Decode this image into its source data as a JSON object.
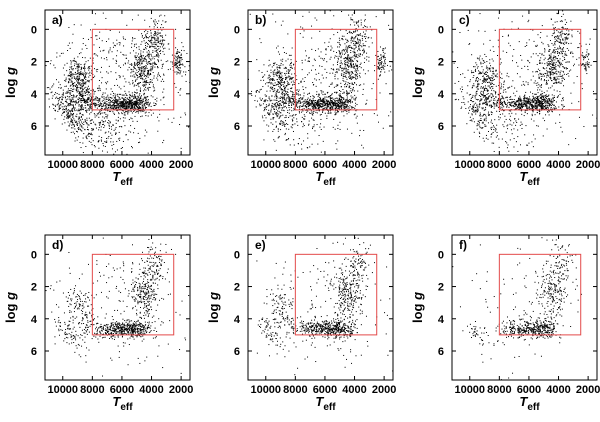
{
  "chart_data": {
    "type": "scatter",
    "grid": false,
    "panel_box_color": "#e34a4a",
    "point_color": "#000000",
    "axes": {
      "x": {
        "label_main": "T",
        "label_sub": "eff",
        "lim": [
          11200,
          1400
        ],
        "reversed": true,
        "ticks": [
          "10000",
          "8000",
          "6000",
          "4000",
          "2000"
        ],
        "tick_values": [
          10000,
          8000,
          6000,
          4000,
          2000
        ]
      },
      "y": {
        "label_italic": "g",
        "label_prefix": "log ",
        "lim": [
          -1.2,
          7.8
        ],
        "reversed": true,
        "ticks": [
          "0",
          "2",
          "4",
          "6"
        ],
        "tick_values": [
          0,
          2,
          4,
          6
        ]
      }
    },
    "selection_box": {
      "teff": [
        8000,
        2500
      ],
      "logg": [
        0,
        5
      ]
    },
    "panels": [
      {
        "label": "a)",
        "clusters": [
          {
            "teff": 9500,
            "logg": 5.2,
            "spread_t": 700,
            "spread_g": 0.5,
            "n": 240,
            "tilt": -0.0009
          },
          {
            "teff": 9000,
            "logg": 3.0,
            "spread_t": 500,
            "spread_g": 0.6,
            "n": 260
          },
          {
            "teff": 8500,
            "logg": 4.3,
            "spread_t": 700,
            "spread_g": 0.4,
            "n": 200
          },
          {
            "teff": 7200,
            "logg": 6.0,
            "spread_t": 900,
            "spread_g": 0.9,
            "n": 180
          },
          {
            "teff": 6200,
            "logg": 4.6,
            "spread_t": 800,
            "spread_g": 0.25,
            "n": 380
          },
          {
            "teff": 5000,
            "logg": 4.6,
            "spread_t": 500,
            "spread_g": 0.3,
            "n": 200
          },
          {
            "teff": 4500,
            "logg": 2.4,
            "spread_t": 500,
            "spread_g": 0.8,
            "n": 300
          },
          {
            "teff": 3800,
            "logg": 0.6,
            "spread_t": 400,
            "spread_g": 0.7,
            "n": 150
          },
          {
            "teff": 2200,
            "logg": 2.0,
            "spread_t": 200,
            "spread_g": 0.4,
            "n": 90
          },
          {
            "teff": 6000,
            "logg": 3.0,
            "spread_t": 2600,
            "spread_g": 2.2,
            "n": 420
          }
        ]
      },
      {
        "label": "b)",
        "clusters": [
          {
            "teff": 9500,
            "logg": 5.2,
            "spread_t": 700,
            "spread_g": 0.5,
            "n": 150,
            "tilt": -0.0009
          },
          {
            "teff": 9000,
            "logg": 3.0,
            "spread_t": 500,
            "spread_g": 0.6,
            "n": 230
          },
          {
            "teff": 8500,
            "logg": 4.3,
            "spread_t": 700,
            "spread_g": 0.4,
            "n": 190
          },
          {
            "teff": 7200,
            "logg": 5.8,
            "spread_t": 900,
            "spread_g": 0.8,
            "n": 80
          },
          {
            "teff": 6200,
            "logg": 4.6,
            "spread_t": 800,
            "spread_g": 0.25,
            "n": 360
          },
          {
            "teff": 5000,
            "logg": 4.6,
            "spread_t": 500,
            "spread_g": 0.3,
            "n": 190
          },
          {
            "teff": 4500,
            "logg": 2.4,
            "spread_t": 500,
            "spread_g": 0.8,
            "n": 280
          },
          {
            "teff": 3800,
            "logg": 0.6,
            "spread_t": 400,
            "spread_g": 0.7,
            "n": 140
          },
          {
            "teff": 2200,
            "logg": 2.0,
            "spread_t": 200,
            "spread_g": 0.4,
            "n": 70
          },
          {
            "teff": 6000,
            "logg": 3.0,
            "spread_t": 2600,
            "spread_g": 2.2,
            "n": 360
          }
        ]
      },
      {
        "label": "c)",
        "clusters": [
          {
            "teff": 9500,
            "logg": 5.2,
            "spread_t": 700,
            "spread_g": 0.5,
            "n": 130,
            "tilt": -0.0009
          },
          {
            "teff": 9000,
            "logg": 3.0,
            "spread_t": 500,
            "spread_g": 0.6,
            "n": 200
          },
          {
            "teff": 8500,
            "logg": 4.3,
            "spread_t": 700,
            "spread_g": 0.4,
            "n": 170
          },
          {
            "teff": 7200,
            "logg": 5.8,
            "spread_t": 900,
            "spread_g": 0.8,
            "n": 50
          },
          {
            "teff": 6200,
            "logg": 4.6,
            "spread_t": 800,
            "spread_g": 0.25,
            "n": 340
          },
          {
            "teff": 5000,
            "logg": 4.6,
            "spread_t": 500,
            "spread_g": 0.3,
            "n": 180
          },
          {
            "teff": 4500,
            "logg": 2.4,
            "spread_t": 500,
            "spread_g": 0.8,
            "n": 260
          },
          {
            "teff": 3800,
            "logg": 0.6,
            "spread_t": 400,
            "spread_g": 0.7,
            "n": 130
          },
          {
            "teff": 2200,
            "logg": 2.0,
            "spread_t": 200,
            "spread_g": 0.4,
            "n": 50
          },
          {
            "teff": 6000,
            "logg": 3.0,
            "spread_t": 2600,
            "spread_g": 2.2,
            "n": 320
          }
        ]
      },
      {
        "label": "d)",
        "clusters": [
          {
            "teff": 9600,
            "logg": 5.0,
            "spread_t": 500,
            "spread_g": 0.4,
            "n": 70,
            "tilt": -0.0009
          },
          {
            "teff": 9000,
            "logg": 3.0,
            "spread_t": 400,
            "spread_g": 0.5,
            "n": 70
          },
          {
            "teff": 8500,
            "logg": 4.3,
            "spread_t": 600,
            "spread_g": 0.4,
            "n": 60
          },
          {
            "teff": 6200,
            "logg": 4.6,
            "spread_t": 800,
            "spread_g": 0.25,
            "n": 300
          },
          {
            "teff": 5000,
            "logg": 4.6,
            "spread_t": 500,
            "spread_g": 0.3,
            "n": 160
          },
          {
            "teff": 4500,
            "logg": 2.4,
            "spread_t": 500,
            "spread_g": 0.8,
            "n": 220
          },
          {
            "teff": 3800,
            "logg": 0.6,
            "spread_t": 400,
            "spread_g": 0.7,
            "n": 90
          },
          {
            "teff": 6000,
            "logg": 3.0,
            "spread_t": 2600,
            "spread_g": 2.2,
            "n": 200
          }
        ]
      },
      {
        "label": "e)",
        "clusters": [
          {
            "teff": 9600,
            "logg": 5.0,
            "spread_t": 500,
            "spread_g": 0.4,
            "n": 60,
            "tilt": -0.0009
          },
          {
            "teff": 9000,
            "logg": 3.0,
            "spread_t": 400,
            "spread_g": 0.5,
            "n": 60
          },
          {
            "teff": 8500,
            "logg": 4.3,
            "spread_t": 600,
            "spread_g": 0.4,
            "n": 50
          },
          {
            "teff": 6200,
            "logg": 4.6,
            "spread_t": 800,
            "spread_g": 0.25,
            "n": 290
          },
          {
            "teff": 5000,
            "logg": 4.6,
            "spread_t": 500,
            "spread_g": 0.3,
            "n": 150
          },
          {
            "teff": 4500,
            "logg": 2.4,
            "spread_t": 500,
            "spread_g": 0.8,
            "n": 210
          },
          {
            "teff": 3800,
            "logg": 0.6,
            "spread_t": 400,
            "spread_g": 0.7,
            "n": 90
          },
          {
            "teff": 6000,
            "logg": 3.0,
            "spread_t": 2600,
            "spread_g": 2.2,
            "n": 180
          }
        ]
      },
      {
        "label": "f)",
        "clusters": [
          {
            "teff": 9500,
            "logg": 5.0,
            "spread_t": 400,
            "spread_g": 0.4,
            "n": 35,
            "tilt": -0.0009
          },
          {
            "teff": 6200,
            "logg": 4.6,
            "spread_t": 800,
            "spread_g": 0.25,
            "n": 260
          },
          {
            "teff": 5000,
            "logg": 4.6,
            "spread_t": 500,
            "spread_g": 0.3,
            "n": 130
          },
          {
            "teff": 4500,
            "logg": 2.4,
            "spread_t": 500,
            "spread_g": 0.8,
            "n": 180
          },
          {
            "teff": 3800,
            "logg": 0.6,
            "spread_t": 400,
            "spread_g": 0.7,
            "n": 70
          },
          {
            "teff": 6000,
            "logg": 3.0,
            "spread_t": 2600,
            "spread_g": 2.2,
            "n": 110
          }
        ]
      }
    ]
  }
}
